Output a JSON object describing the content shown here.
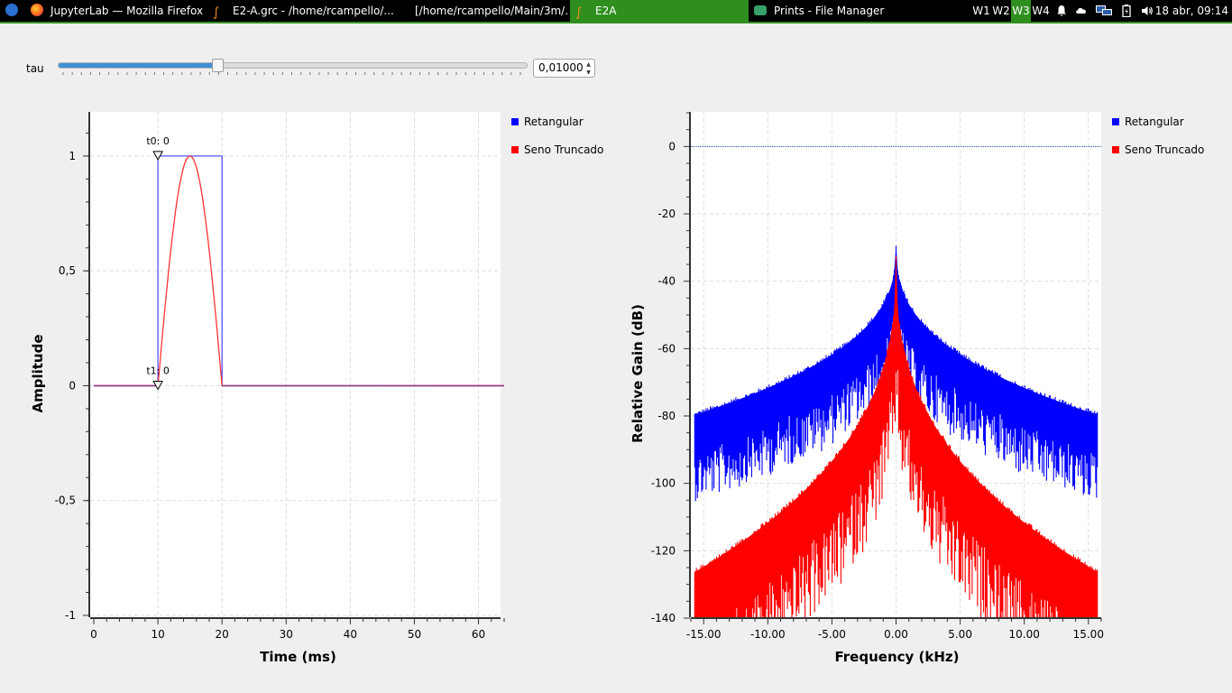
{
  "taskbar": {
    "menu_icon": "xfce-mouse-icon",
    "tasks": [
      {
        "label": "JupyterLab — Mozilla Firefox",
        "icon": "firefox-icon",
        "active": false
      },
      {
        "label": "E2-A.grc - /home/rcampello/...",
        "icon": "gnuradio-icon",
        "active": false
      },
      {
        "label": "[/home/rcampello/Main/3m/...",
        "icon": "",
        "active": false
      },
      {
        "label": "E2A",
        "icon": "gnuradio-icon",
        "active": true
      },
      {
        "label": "Prints - File Manager",
        "icon": "folder-icon",
        "active": false
      }
    ],
    "workspaces": [
      "W1",
      "W2",
      "W3",
      "W4"
    ],
    "active_workspace": "W3",
    "tray_icons": [
      "bell-icon",
      "cloud-icon",
      "network-icon",
      "battery-icon",
      "volume-icon"
    ],
    "clock": "18 abr, 09:14",
    "accent": "#2f8f1e"
  },
  "controls": {
    "tau_label": "tau",
    "slider_fraction": 0.34,
    "spin_value": "0,01000"
  },
  "time_plot": {
    "type": "line",
    "xlabel": "Time (ms)",
    "ylabel": "Amplitude",
    "xlim": [
      0,
      64
    ],
    "ylim": [
      -1,
      1.2
    ],
    "xticks": [
      "0",
      "10",
      "20",
      "30",
      "40",
      "50",
      "60"
    ],
    "yticks": [
      "1",
      "0,5",
      "0",
      "-0,5",
      "-1"
    ],
    "markers": [
      {
        "label": "t0: 0",
        "x": 10,
        "y": 1
      },
      {
        "label": "t1: 0",
        "x": 10,
        "y": 0
      }
    ],
    "legend": [
      {
        "name": "Retangular",
        "color": "#0000ff"
      },
      {
        "name": "Seno Truncado",
        "color": "#ff0000"
      }
    ],
    "series": [
      {
        "name": "Retangular",
        "color": "#5555ff",
        "x": [
          0,
          10,
          10,
          20,
          20,
          64
        ],
        "y": [
          0,
          0,
          1,
          1,
          0,
          0
        ]
      },
      {
        "name": "Seno Truncado",
        "color": "#ff3333",
        "pulse_start": 10,
        "pulse_end": 20,
        "baseline_end": 64
      }
    ]
  },
  "freq_plot": {
    "type": "line",
    "xlabel": "Frequency (kHz)",
    "ylabel": "Relative Gain (dB)",
    "xlim": [
      -16,
      16
    ],
    "ylim": [
      -140,
      10
    ],
    "xticks": [
      "-15.00",
      "-10.00",
      "-5.00",
      "0.00",
      "5.00",
      "10.00",
      "15.00"
    ],
    "yticks": [
      "0",
      "-20",
      "-40",
      "-60",
      "-80",
      "-100",
      "-120",
      "-140"
    ],
    "reference_level": 0,
    "legend": [
      {
        "name": "Retangular",
        "color": "#0000ff"
      },
      {
        "name": "Seno Truncado",
        "color": "#ff0000"
      }
    ],
    "series": [
      {
        "name": "Retangular",
        "color": "#0000ff",
        "peak_db": -29,
        "edge_upper_db": -80,
        "edge_lower_db": -106
      },
      {
        "name": "Seno Truncado",
        "color": "#ff0000",
        "peak_db": -33,
        "edge_upper_db": -127,
        "edge_lower_db": -140
      }
    ]
  }
}
